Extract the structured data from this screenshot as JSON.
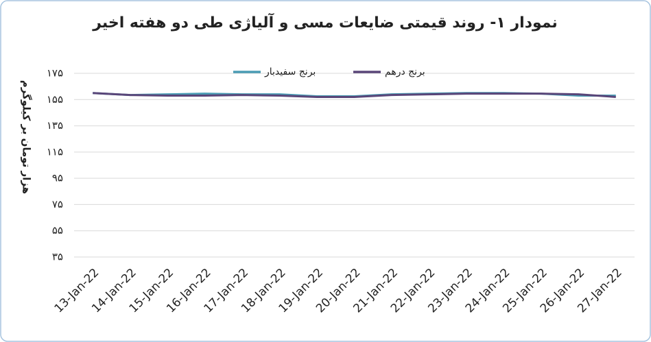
{
  "chart_data": {
    "type": "line",
    "title": "نمودار ۱- روند قیمتی ضایعات مسی و آلیاژی طی دو هفته اخیر",
    "y_label": "هزار تومان بر کیلوگرم",
    "categories": [
      "13-Jan-22",
      "14-Jan-22",
      "15-Jan-22",
      "16-Jan-22",
      "17-Jan-22",
      "18-Jan-22",
      "19-Jan-22",
      "20-Jan-22",
      "21-Jan-22",
      "22-Jan-22",
      "23-Jan-22",
      "24-Jan-22",
      "25-Jan-22",
      "26-Jan-22",
      "27-Jan-22"
    ],
    "series": [
      {
        "name": "برنج سفیدبار",
        "color": "#4a9cb4",
        "values": [
          160,
          158.5,
          159,
          159.5,
          159,
          159,
          157.5,
          157.5,
          159,
          159.5,
          160,
          160,
          159.5,
          158,
          158
        ]
      },
      {
        "name": "برنج درهم",
        "color": "#5a4679",
        "values": [
          160,
          158.5,
          158,
          158,
          158.5,
          158,
          157,
          157,
          158.5,
          159,
          159.5,
          159.5,
          159.5,
          159,
          157
        ]
      }
    ],
    "ylim": [
      35,
      175
    ],
    "yticks": [
      {
        "value": 35,
        "label": "۳۵"
      },
      {
        "value": 55,
        "label": "۵۵"
      },
      {
        "value": 75,
        "label": "۷۵"
      },
      {
        "value": 95,
        "label": "۹۵"
      },
      {
        "value": 115,
        "label": "۱۱۵"
      },
      {
        "value": 135,
        "label": "۱۳۵"
      },
      {
        "value": 155,
        "label": "۱۵۵"
      },
      {
        "value": 175,
        "label": "۱۷۵"
      }
    ],
    "grid": true,
    "legend": "top"
  }
}
